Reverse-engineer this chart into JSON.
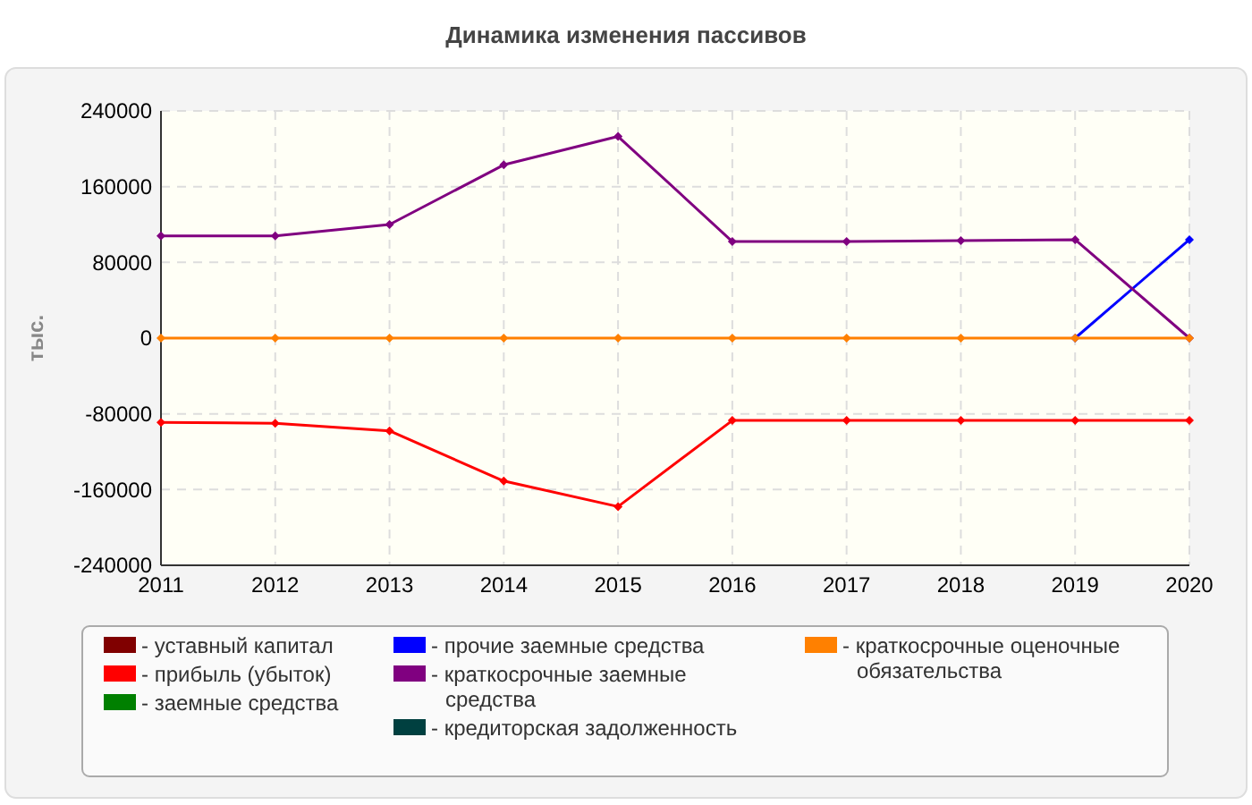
{
  "chart_data": {
    "type": "line",
    "title": "Динамика изменения пассивов",
    "ylabel": "тыс.",
    "categories": [
      "2011",
      "2012",
      "2013",
      "2014",
      "2015",
      "2016",
      "2017",
      "2018",
      "2019",
      "2020"
    ],
    "series": [
      {
        "name": "- уставный капитал",
        "color": "#800000",
        "values": [
          null,
          null,
          null,
          null,
          null,
          null,
          null,
          null,
          null,
          null
        ]
      },
      {
        "name": "- прибыль (убыток)",
        "color": "#ff0000",
        "values": [
          -89000,
          -90000,
          -98000,
          -151000,
          -178000,
          -87000,
          -87000,
          -87000,
          -87000,
          -87000
        ]
      },
      {
        "name": "- заемные средства",
        "color": "#008000",
        "values": [
          null,
          null,
          null,
          null,
          null,
          null,
          null,
          null,
          null,
          null
        ]
      },
      {
        "name": "- прочие заемные средства",
        "color": "#0000ff",
        "values": [
          null,
          null,
          null,
          null,
          null,
          null,
          null,
          null,
          0,
          104000
        ]
      },
      {
        "name": "- краткосрочные заемные средства",
        "color": "#800080",
        "values": [
          108000,
          108000,
          120000,
          183000,
          213000,
          102000,
          102000,
          103000,
          104000,
          0
        ]
      },
      {
        "name": "- кредиторская задолженность",
        "color": "#004040",
        "values": [
          null,
          null,
          null,
          null,
          null,
          null,
          null,
          null,
          null,
          null
        ]
      },
      {
        "name": "- краткосрочные оценочные обязательства",
        "color": "#ff8000",
        "values": [
          0,
          0,
          0,
          0,
          0,
          0,
          0,
          0,
          0,
          0
        ]
      }
    ],
    "ylim": [
      -240000,
      240000
    ],
    "yticks": [
      -240000,
      -160000,
      -80000,
      0,
      80000,
      160000,
      240000
    ],
    "grid": true,
    "legend": "bottom",
    "marker": "diamond",
    "line_style": "solid"
  }
}
